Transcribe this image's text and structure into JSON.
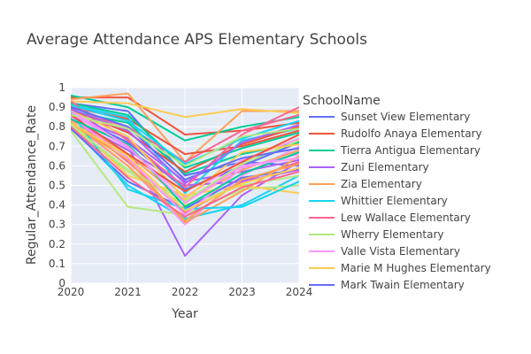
{
  "chart_data": {
    "type": "line",
    "title": "Average Attendance APS Elementary Schools",
    "xlabel": "Year",
    "ylabel": "Regular_Attendance_Rate",
    "x": [
      2020,
      2021,
      2022,
      2023,
      2024
    ],
    "x_ticks": [
      "2020",
      "2021",
      "2022",
      "2023",
      "2024"
    ],
    "ylim": [
      0,
      1
    ],
    "y_ticks": [
      "0",
      "0.1",
      "0.2",
      "0.3",
      "0.4",
      "0.5",
      "0.6",
      "0.7",
      "0.8",
      "0.9",
      "1"
    ],
    "grid": true,
    "legend_title": "SchoolName",
    "legend_position": "right",
    "series": [
      {
        "name": "Sunset View Elementary",
        "color": "#636efa",
        "values": [
          0.92,
          0.88,
          0.55,
          0.62,
          0.6
        ]
      },
      {
        "name": "Rudolfo Anaya Elementary",
        "color": "#ef553b",
        "values": [
          0.95,
          0.95,
          0.76,
          0.78,
          0.82
        ]
      },
      {
        "name": "Tierra Antigua Elementary",
        "color": "#00cc96",
        "values": [
          0.96,
          0.9,
          0.73,
          0.8,
          0.85
        ]
      },
      {
        "name": "Zuni Elementary",
        "color": "#ab63fa",
        "values": [
          0.9,
          0.7,
          0.14,
          0.45,
          0.62
        ]
      },
      {
        "name": "Zia Elementary",
        "color": "#ffa15a",
        "values": [
          0.94,
          0.97,
          0.62,
          0.88,
          0.88
        ]
      },
      {
        "name": "Whittier Elementary",
        "color": "#19d3f3",
        "values": [
          0.8,
          0.5,
          0.33,
          0.4,
          0.55
        ]
      },
      {
        "name": "Lew Wallace Elementary",
        "color": "#ff6692",
        "values": [
          0.88,
          0.8,
          0.62,
          0.78,
          0.86
        ]
      },
      {
        "name": "Wherry Elementary",
        "color": "#b6e880",
        "values": [
          0.78,
          0.39,
          0.35,
          0.48,
          0.5
        ]
      },
      {
        "name": "Valle Vista Elementary",
        "color": "#ff97ff",
        "values": [
          0.82,
          0.6,
          0.3,
          0.55,
          0.7
        ]
      },
      {
        "name": "Marie M Hughes Elementary",
        "color": "#fecb52",
        "values": [
          0.93,
          0.92,
          0.85,
          0.89,
          0.87
        ]
      },
      {
        "name": "Mark Twain Elementary",
        "color": "#636efa",
        "values": [
          0.86,
          0.72,
          0.48,
          0.6,
          0.72
        ]
      },
      {
        "name": "",
        "color": "#ef553b",
        "values": [
          0.9,
          0.84,
          0.66,
          0.7,
          0.78
        ]
      },
      {
        "name": "",
        "color": "#00cc96",
        "values": [
          0.88,
          0.82,
          0.56,
          0.66,
          0.72
        ]
      },
      {
        "name": "",
        "color": "#ab63fa",
        "values": [
          0.86,
          0.74,
          0.52,
          0.57,
          0.63
        ]
      },
      {
        "name": "",
        "color": "#ffa15a",
        "values": [
          0.84,
          0.66,
          0.42,
          0.58,
          0.68
        ]
      },
      {
        "name": "",
        "color": "#19d3f3",
        "values": [
          0.91,
          0.85,
          0.46,
          0.73,
          0.79
        ]
      },
      {
        "name": "",
        "color": "#ff6692",
        "values": [
          0.85,
          0.62,
          0.36,
          0.52,
          0.62
        ]
      },
      {
        "name": "",
        "color": "#b6e880",
        "values": [
          0.8,
          0.57,
          0.4,
          0.5,
          0.55
        ]
      },
      {
        "name": "",
        "color": "#ff97ff",
        "values": [
          0.87,
          0.69,
          0.44,
          0.63,
          0.74
        ]
      },
      {
        "name": "",
        "color": "#fecb52",
        "values": [
          0.83,
          0.55,
          0.45,
          0.5,
          0.46
        ]
      },
      {
        "name": "",
        "color": "#636efa",
        "values": [
          0.79,
          0.52,
          0.38,
          0.54,
          0.58
        ]
      },
      {
        "name": "",
        "color": "#ef553b",
        "values": [
          0.89,
          0.77,
          0.57,
          0.71,
          0.8
        ]
      },
      {
        "name": "",
        "color": "#00cc96",
        "values": [
          0.92,
          0.86,
          0.59,
          0.69,
          0.77
        ]
      },
      {
        "name": "",
        "color": "#ab63fa",
        "values": [
          0.84,
          0.68,
          0.5,
          0.52,
          0.58
        ]
      },
      {
        "name": "",
        "color": "#ffa15a",
        "values": [
          0.82,
          0.63,
          0.31,
          0.47,
          0.65
        ]
      },
      {
        "name": "",
        "color": "#19d3f3",
        "values": [
          0.87,
          0.48,
          0.38,
          0.39,
          0.52
        ]
      },
      {
        "name": "",
        "color": "#ff6692",
        "values": [
          0.93,
          0.73,
          0.49,
          0.76,
          0.9
        ]
      },
      {
        "name": "",
        "color": "#b6e880",
        "values": [
          0.81,
          0.58,
          0.42,
          0.61,
          0.73
        ]
      },
      {
        "name": "",
        "color": "#ff97ff",
        "values": [
          0.85,
          0.64,
          0.35,
          0.59,
          0.66
        ]
      },
      {
        "name": "",
        "color": "#fecb52",
        "values": [
          0.88,
          0.75,
          0.43,
          0.67,
          0.71
        ]
      },
      {
        "name": "",
        "color": "#636efa",
        "values": [
          0.9,
          0.8,
          0.53,
          0.64,
          0.69
        ]
      },
      {
        "name": "",
        "color": "#ef553b",
        "values": [
          0.86,
          0.66,
          0.47,
          0.62,
          0.76
        ]
      },
      {
        "name": "",
        "color": "#00cc96",
        "values": [
          0.84,
          0.71,
          0.39,
          0.56,
          0.67
        ]
      },
      {
        "name": "",
        "color": "#ab63fa",
        "values": [
          0.89,
          0.78,
          0.51,
          0.72,
          0.81
        ]
      },
      {
        "name": "",
        "color": "#ffa15a",
        "values": [
          0.83,
          0.6,
          0.32,
          0.53,
          0.61
        ]
      },
      {
        "name": "",
        "color": "#19d3f3",
        "values": [
          0.91,
          0.83,
          0.61,
          0.74,
          0.83
        ]
      },
      {
        "name": "",
        "color": "#ff6692",
        "values": [
          0.8,
          0.54,
          0.34,
          0.49,
          0.57
        ]
      },
      {
        "name": "",
        "color": "#b6e880",
        "values": [
          0.86,
          0.79,
          0.6,
          0.75,
          0.79
        ]
      },
      {
        "name": "",
        "color": "#ff97ff",
        "values": [
          0.88,
          0.7,
          0.41,
          0.6,
          0.64
        ]
      },
      {
        "name": "",
        "color": "#fecb52",
        "values": [
          0.82,
          0.65,
          0.37,
          0.51,
          0.59
        ]
      }
    ]
  }
}
